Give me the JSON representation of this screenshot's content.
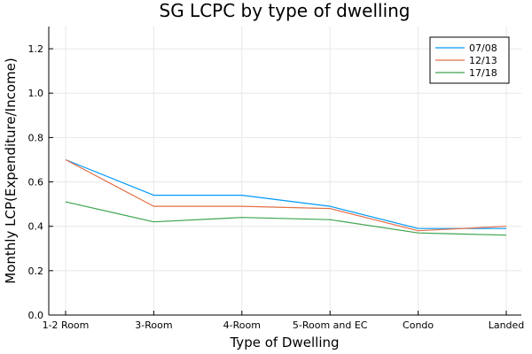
{
  "chart_data": {
    "type": "line",
    "title": "SG LCPC by type of dwelling",
    "xlabel": "Type of Dwelling",
    "ylabel": "Monthly LCP(Expenditure/Income)",
    "categories": [
      "1-2 Room",
      "3-Room",
      "4-Room",
      "5-Room and EC",
      "Condo",
      "Landed"
    ],
    "ylim": [
      0,
      1.3
    ],
    "yticks": [
      "0.0",
      "0.2",
      "0.4",
      "0.6",
      "0.8",
      "1.0",
      "1.2"
    ],
    "grid": true,
    "legend_position": "top-right",
    "series": [
      {
        "name": "07/08",
        "color": "#009AFA",
        "values": [
          0.7,
          0.54,
          0.54,
          0.49,
          0.39,
          0.39
        ]
      },
      {
        "name": "12/13",
        "color": "#E36F47",
        "values": [
          0.7,
          0.49,
          0.49,
          0.48,
          0.38,
          0.4
        ]
      },
      {
        "name": "17/18",
        "color": "#3EA44E",
        "values": [
          0.51,
          0.42,
          0.44,
          0.43,
          0.37,
          0.36
        ]
      }
    ]
  }
}
